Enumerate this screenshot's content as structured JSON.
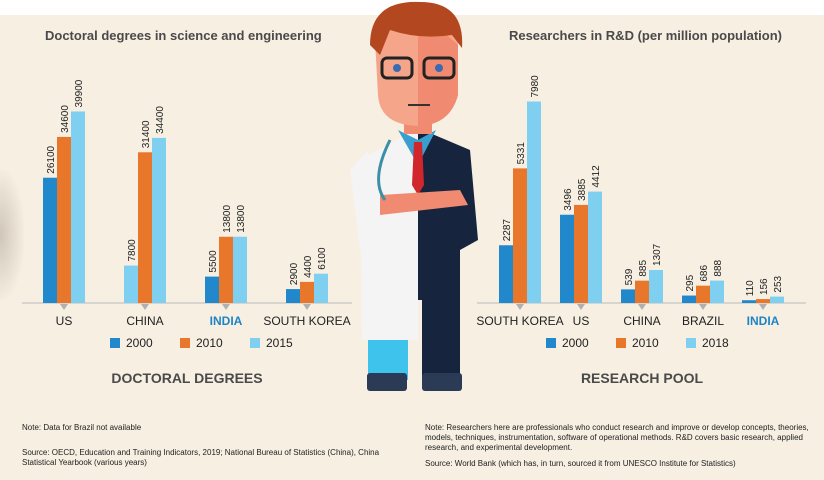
{
  "colors": {
    "c2000": "#2188cc",
    "c2010": "#e8762b",
    "c2015": "#7fd0f0",
    "highlight": "#1f84c6",
    "axis": "#b9b9b9"
  },
  "chart_data": [
    {
      "type": "bar",
      "title": "Doctoral degrees in science and engineering",
      "subtitle": "DOCTORAL DEGREES",
      "categories": [
        "US",
        "CHINA",
        "INDIA",
        "SOUTH KOREA"
      ],
      "highlight_category": "INDIA",
      "series": [
        {
          "name": "2000",
          "values": [
            26100,
            7800,
            5500,
            2900
          ]
        },
        {
          "name": "2010",
          "values": [
            34600,
            31400,
            13800,
            4400
          ]
        },
        {
          "name": "2015",
          "values": [
            39900,
            34400,
            13800,
            6100
          ]
        }
      ],
      "value_labels": [
        [
          "26100",
          "34600",
          "39900"
        ],
        [
          "7800",
          "31400",
          "34400"
        ],
        [
          "5500",
          "13800",
          "13800"
        ],
        [
          "2900",
          "4400",
          "6100"
        ]
      ],
      "bar_colors": [
        [
          "c2000",
          "c2010",
          "c2015"
        ],
        [
          "c2015",
          "c2010",
          "c2015"
        ],
        [
          "c2000",
          "c2010",
          "c2015"
        ],
        [
          "c2000",
          "c2010",
          "c2015"
        ]
      ],
      "ylim": [
        0,
        40000
      ],
      "xlabel": "",
      "ylabel": "",
      "legend": "bottom"
    },
    {
      "type": "bar",
      "title": "Researchers in R&D (per million population)",
      "subtitle": "RESEARCH POOL",
      "categories": [
        "SOUTH KOREA",
        "US",
        "CHINA",
        "BRAZIL",
        "INDIA"
      ],
      "highlight_category": "INDIA",
      "series": [
        {
          "name": "2000",
          "values": [
            2287,
            3496,
            539,
            295,
            110
          ]
        },
        {
          "name": "2010",
          "values": [
            5331,
            3885,
            885,
            686,
            156
          ]
        },
        {
          "name": "2018",
          "values": [
            7980,
            4412,
            1307,
            888,
            253
          ]
        }
      ],
      "value_labels": [
        [
          "2287",
          "5331",
          "7980"
        ],
        [
          "3496",
          "3885",
          "4412"
        ],
        [
          "539",
          "885",
          "1307"
        ],
        [
          "295",
          "686",
          "888"
        ],
        [
          "110",
          "156",
          "253"
        ]
      ],
      "bar_colors": [
        [
          "c2000",
          "c2010",
          "c2015"
        ],
        [
          "c2000",
          "c2010",
          "c2015"
        ],
        [
          "c2000",
          "c2010",
          "c2015"
        ],
        [
          "c2000",
          "c2010",
          "c2015"
        ],
        [
          "c2000",
          "c2010",
          "c2015"
        ]
      ],
      "ylim": [
        0,
        8000
      ],
      "xlabel": "",
      "ylabel": "",
      "legend": "bottom"
    }
  ],
  "notes": {
    "left_note": "Note: Data for Brazil not available",
    "left_source": "Source: OECD, Education and Training Indicators, 2019; National Bureau of Statistics (China), China Statistical Yearbook (various years)",
    "right_note": "Note: Researchers here are professionals who conduct research and improve or develop concepts, theories, models, techniques, instrumentation, software of operational methods. R&D covers basic research, applied research, and experimental development.",
    "right_source": "Source: World Bank (which has, in turn, sourced it from UNESCO Institute for Statistics)"
  }
}
